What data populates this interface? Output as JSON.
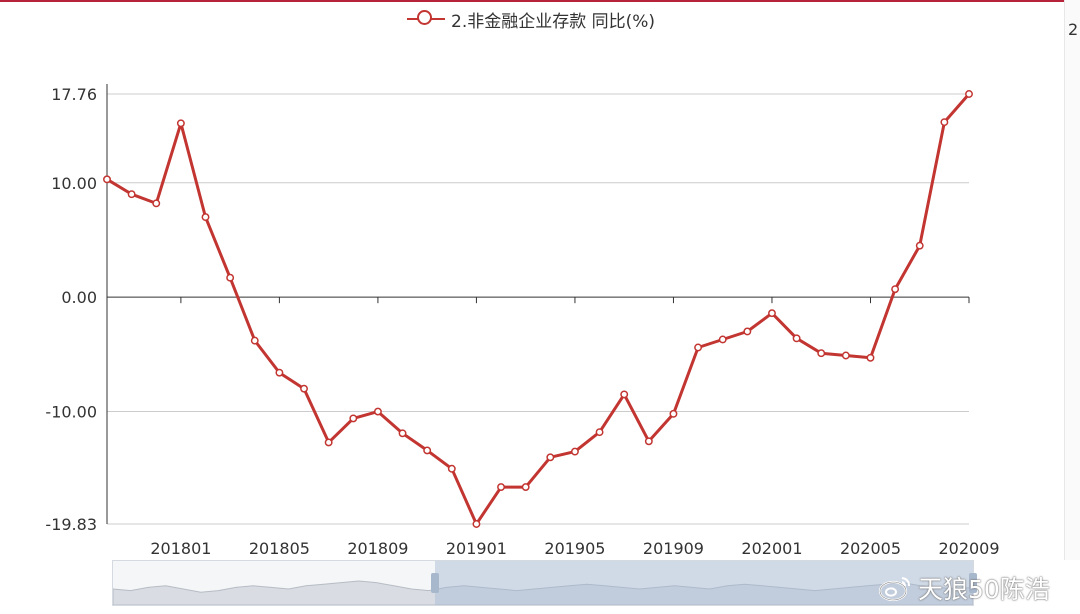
{
  "legend": {
    "label": "2.非金融企业存款 同比(%)"
  },
  "side_fragment": "2",
  "watermark": {
    "text": "天狼50陈浩",
    "icon": "weibo-icon"
  },
  "colors": {
    "series": "#c23531",
    "axis": "#333333",
    "grid": "#cccccc"
  },
  "chart_data": {
    "type": "line",
    "title": "",
    "xlabel": "",
    "ylabel": "",
    "series": [
      {
        "name": "2.非金融企业存款 同比(%)",
        "values": [
          10.3,
          9.0,
          8.2,
          15.2,
          7.0,
          1.7,
          -3.8,
          -6.6,
          -8.0,
          -12.7,
          -10.6,
          -10.0,
          -11.9,
          -13.4,
          -15.0,
          -19.83,
          -16.6,
          -16.6,
          -14.0,
          -13.5,
          -11.8,
          -8.5,
          -12.6,
          -10.2,
          -4.4,
          -3.7,
          -3.0,
          -1.4,
          -3.6,
          -4.9,
          -5.1,
          -5.3,
          0.7,
          4.5,
          15.3,
          17.76
        ]
      }
    ],
    "x_range": [
      "201710",
      "202009"
    ],
    "x_ticks": [
      "201801",
      "201805",
      "201809",
      "201901",
      "201905",
      "201909",
      "202001",
      "202005",
      "202009"
    ],
    "y_ticks": [
      "17.76",
      "10.00",
      "0.00",
      "-10.00",
      "-19.83"
    ],
    "y_tick_values": [
      17.76,
      10.0,
      0.0,
      -10.0,
      -19.83
    ],
    "ylim": [
      -19.83,
      17.76
    ],
    "grid": true,
    "legend_position": "top-center",
    "data_zoom": {
      "start_percent": 37,
      "end_percent": 100
    }
  }
}
